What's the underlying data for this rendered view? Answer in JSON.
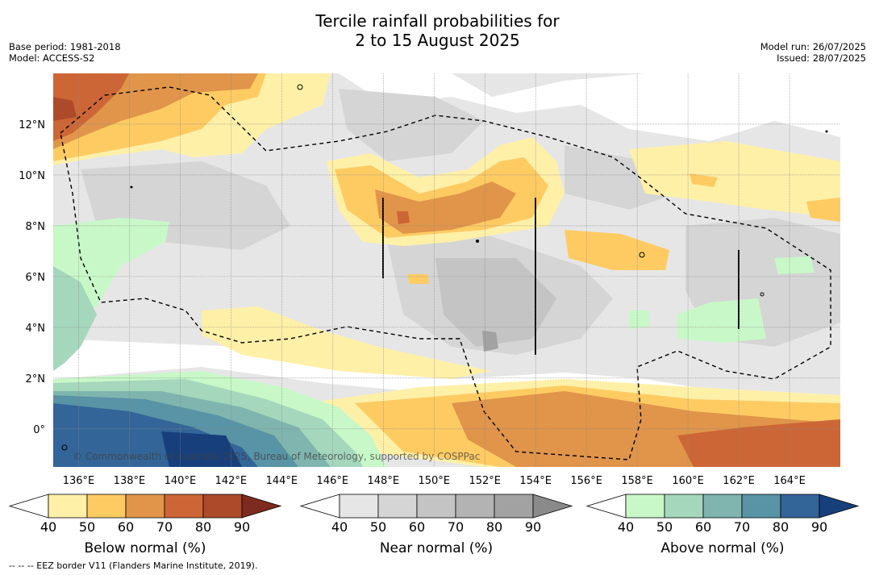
{
  "title_line1": "Tercile rainfall probabilities for",
  "title_line2": "2 to 15 August 2025",
  "meta_left": [
    "Base period: 1981-2018",
    "Model: ACCESS-S2"
  ],
  "meta_right": [
    "Model run: 26/07/2025",
    "Issued: 28/07/2025"
  ],
  "watermark": "© Commonwealth of Australia 2025, Bureau of Meteorology, supported by COSPPac",
  "footnote": "--  --  -- EEZ border V11 (Flanders Marine Institute, 2019).",
  "chart_data": {
    "type": "heatmap",
    "lon_ticks": [
      "136°E",
      "138°E",
      "140°E",
      "142°E",
      "144°E",
      "146°E",
      "148°E",
      "150°E",
      "152°E",
      "154°E",
      "156°E",
      "158°E",
      "160°E",
      "162°E",
      "164°E"
    ],
    "lon_values": [
      136,
      138,
      140,
      142,
      144,
      146,
      148,
      150,
      152,
      154,
      156,
      158,
      160,
      162,
      164
    ],
    "lat_ticks": [
      "12°N",
      "10°N",
      "8°N",
      "6°N",
      "4°N",
      "2°N",
      "0°"
    ],
    "lat_values": [
      12,
      10,
      8,
      6,
      4,
      2,
      0
    ],
    "lon_range": [
      135,
      166
    ],
    "lat_range": [
      -1.5,
      14
    ],
    "grid": true,
    "colorbars": [
      {
        "label": "Below normal (%)",
        "ticks": [
          "40",
          "50",
          "60",
          "70",
          "80",
          "90"
        ],
        "colors": [
          "#ffffff",
          "#fff0a8",
          "#fecb63",
          "#e0954a",
          "#cd6636",
          "#ad4a2a",
          "#7f2a1f"
        ]
      },
      {
        "label": "Near normal (%)",
        "ticks": [
          "40",
          "50",
          "60",
          "70",
          "80",
          "90"
        ],
        "colors": [
          "#ffffff",
          "#e6e6e6",
          "#d5d5d5",
          "#c4c4c4",
          "#b3b3b3",
          "#a2a2a2",
          "#8a8a8a"
        ]
      },
      {
        "label": "Above normal (%)",
        "ticks": [
          "40",
          "50",
          "60",
          "70",
          "80",
          "90"
        ],
        "colors": [
          "#ffffff",
          "#c8f8c8",
          "#a5d7bc",
          "#7fb5ae",
          "#5893a6",
          "#336598",
          "#173f7c"
        ]
      }
    ]
  }
}
